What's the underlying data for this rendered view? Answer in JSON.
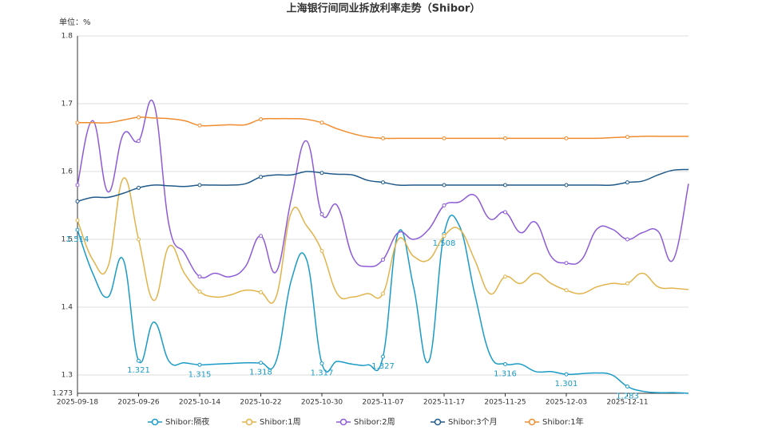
{
  "chart_data": {
    "type": "line",
    "title": "上海银行间同业拆放利率走势（Shibor）",
    "y_label": "单位：%",
    "categories": [
      "2025-09-18",
      null,
      null,
      null,
      "2025-09-26",
      null,
      null,
      null,
      "2025-10-14",
      null,
      null,
      null,
      "2025-10-22",
      null,
      null,
      null,
      "2025-10-30",
      null,
      null,
      null,
      "2025-11-07",
      null,
      null,
      null,
      "2025-11-17",
      null,
      null,
      null,
      "2025-11-25",
      null,
      null,
      null,
      "2025-12-03",
      null,
      null,
      null,
      "2025-12-11",
      null,
      null,
      null,
      null
    ],
    "ylim": [
      1.273,
      1.8
    ],
    "yticks": [
      1.273,
      1.3,
      1.4,
      1.5,
      1.6,
      1.7,
      1.8
    ],
    "grid": true,
    "series": [
      {
        "name": "Shibor:隔夜",
        "color": "#1a9bc7",
        "values": [
          1.514,
          1.45,
          1.415,
          1.47,
          1.321,
          1.378,
          1.32,
          1.318,
          1.315,
          1.316,
          1.317,
          1.318,
          1.318,
          1.32,
          1.44,
          1.47,
          1.317,
          1.32,
          1.316,
          1.315,
          1.327,
          1.51,
          1.43,
          1.32,
          1.508,
          1.52,
          1.42,
          1.33,
          1.316,
          1.316,
          1.305,
          1.305,
          1.301,
          1.302,
          1.303,
          1.3,
          1.283,
          1.276,
          1.274,
          1.274,
          1.273
        ]
      },
      {
        "name": "Shibor:1周",
        "color": "#e2b34a",
        "values": [
          1.528,
          1.47,
          1.46,
          1.59,
          1.5,
          1.41,
          1.49,
          1.45,
          1.423,
          1.415,
          1.418,
          1.425,
          1.422,
          1.415,
          1.54,
          1.52,
          1.483,
          1.42,
          1.415,
          1.42,
          1.42,
          1.5,
          1.475,
          1.47,
          1.505,
          1.515,
          1.47,
          1.42,
          1.445,
          1.435,
          1.45,
          1.435,
          1.425,
          1.42,
          1.43,
          1.435,
          1.435,
          1.45,
          1.43,
          1.428,
          1.426
        ]
      },
      {
        "name": "Shibor:2周",
        "color": "#8e5bd8",
        "values": [
          1.58,
          1.675,
          1.57,
          1.655,
          1.645,
          1.7,
          1.52,
          1.48,
          1.445,
          1.45,
          1.445,
          1.46,
          1.505,
          1.452,
          1.56,
          1.645,
          1.537,
          1.55,
          1.475,
          1.46,
          1.47,
          1.51,
          1.5,
          1.515,
          1.55,
          1.555,
          1.565,
          1.53,
          1.54,
          1.51,
          1.525,
          1.475,
          1.465,
          1.47,
          1.515,
          1.515,
          1.5,
          1.51,
          1.512,
          1.47,
          1.582
        ]
      },
      {
        "name": "Shibor:3个月",
        "color": "#1f5a8a",
        "values": [
          1.556,
          1.562,
          1.562,
          1.568,
          1.576,
          1.58,
          1.579,
          1.578,
          1.58,
          1.58,
          1.58,
          1.582,
          1.592,
          1.595,
          1.595,
          1.6,
          1.598,
          1.596,
          1.595,
          1.587,
          1.584,
          1.58,
          1.58,
          1.58,
          1.58,
          1.58,
          1.58,
          1.58,
          1.58,
          1.58,
          1.58,
          1.58,
          1.58,
          1.58,
          1.58,
          1.58,
          1.584,
          1.586,
          1.595,
          1.602,
          1.603
        ]
      },
      {
        "name": "Shibor:1年",
        "color": "#f08c2e",
        "values": [
          1.672,
          1.672,
          1.672,
          1.676,
          1.68,
          1.679,
          1.678,
          1.675,
          1.668,
          1.668,
          1.669,
          1.669,
          1.677,
          1.678,
          1.678,
          1.677,
          1.672,
          1.663,
          1.656,
          1.651,
          1.649,
          1.649,
          1.649,
          1.649,
          1.649,
          1.649,
          1.649,
          1.649,
          1.649,
          1.649,
          1.649,
          1.649,
          1.649,
          1.649,
          1.649,
          1.65,
          1.651,
          1.652,
          1.652,
          1.652,
          1.652
        ]
      }
    ]
  }
}
